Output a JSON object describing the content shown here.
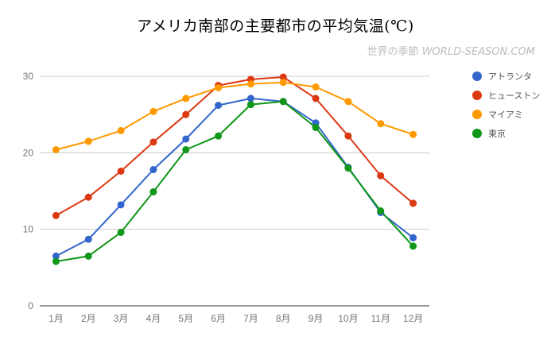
{
  "title": "アメリカ南部の主要都市の平均気温(℃)",
  "watermark": {
    "jp": "世界の季節",
    "en": "WORLD-SEASON.COM"
  },
  "chart_data": {
    "type": "line",
    "title": "アメリカ南部の主要都市の平均気温(℃)",
    "xlabel": "",
    "ylabel": "",
    "categories": [
      "1月",
      "2月",
      "3月",
      "4月",
      "5月",
      "6月",
      "7月",
      "8月",
      "9月",
      "10月",
      "11月",
      "12月"
    ],
    "ylim": [
      0,
      30
    ],
    "yticks": [
      0,
      10,
      20,
      30
    ],
    "grid": true,
    "legend_position": "right",
    "series": [
      {
        "name": "アトランタ",
        "color": "#3366cc",
        "values": [
          6.5,
          8.7,
          13.2,
          17.8,
          21.8,
          26.2,
          27.1,
          26.7,
          23.9,
          18.1,
          12.2,
          8.9
        ]
      },
      {
        "name": "ヒューストン",
        "color": "#dc3912",
        "values": [
          11.8,
          14.2,
          17.6,
          21.4,
          25.0,
          28.8,
          29.6,
          29.9,
          27.1,
          22.2,
          17.0,
          13.4
        ]
      },
      {
        "name": "マイアミ",
        "color": "#ff9900",
        "values": [
          20.4,
          21.5,
          22.9,
          25.4,
          27.1,
          28.5,
          29.0,
          29.2,
          28.6,
          26.7,
          23.8,
          22.4
        ]
      },
      {
        "name": "東京",
        "color": "#109618",
        "values": [
          5.8,
          6.5,
          9.6,
          14.9,
          20.4,
          22.2,
          26.3,
          26.7,
          23.3,
          18.0,
          12.4,
          7.8
        ]
      }
    ]
  }
}
